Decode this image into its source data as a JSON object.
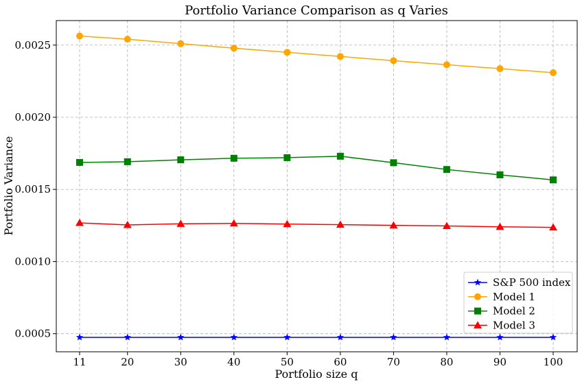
{
  "chart_data": {
    "type": "line",
    "title": "Portfolio Variance Comparison as q Varies",
    "xlabel": "Portfolio size q",
    "ylabel": "Portfolio Variance",
    "x": [
      11,
      20,
      30,
      40,
      50,
      60,
      70,
      80,
      90,
      100
    ],
    "x_tick_labels": [
      "11",
      "20",
      "30",
      "40",
      "50",
      "60",
      "70",
      "80",
      "90",
      "100"
    ],
    "y_ticks": [
      0.0005,
      0.001,
      0.0015,
      0.002,
      0.0025
    ],
    "y_tick_labels": [
      "0.0005",
      "0.0010",
      "0.0015",
      "0.0020",
      "0.0025"
    ],
    "ylim": [
      0.000375,
      0.00267
    ],
    "grid": true,
    "legend_position": "lower-right",
    "series": [
      {
        "name": "S&P 500 index",
        "color": "#0000ff",
        "marker": "star",
        "values": [
          0.000475,
          0.000475,
          0.000475,
          0.000475,
          0.000475,
          0.000475,
          0.000475,
          0.000475,
          0.000475,
          0.000475
        ]
      },
      {
        "name": "Model 1",
        "color": "#ffa500",
        "marker": "circle",
        "values": [
          0.002563,
          0.002541,
          0.00251,
          0.002479,
          0.00245,
          0.002421,
          0.002392,
          0.002364,
          0.002337,
          0.002309
        ]
      },
      {
        "name": "Model 2",
        "color": "#008000",
        "marker": "square",
        "values": [
          0.001687,
          0.001692,
          0.001705,
          0.001716,
          0.00172,
          0.00173,
          0.001685,
          0.001638,
          0.001601,
          0.001566
        ]
      },
      {
        "name": "Model 3",
        "color": "#ff0000",
        "marker": "triangle",
        "values": [
          0.001268,
          0.001254,
          0.001262,
          0.001265,
          0.00126,
          0.001256,
          0.001251,
          0.001247,
          0.001241,
          0.001237
        ]
      }
    ]
  }
}
